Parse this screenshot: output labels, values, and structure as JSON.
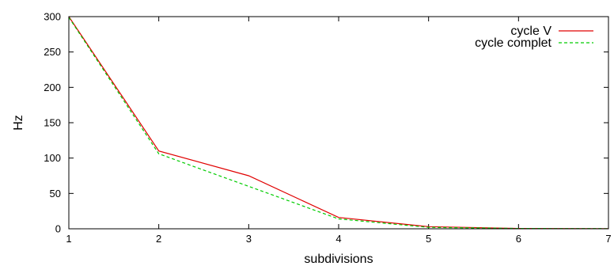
{
  "chart_data": {
    "type": "line",
    "title": "",
    "xlabel": "subdivisions",
    "ylabel": "Hz",
    "xlim": [
      1,
      7
    ],
    "ylim": [
      0,
      300
    ],
    "x_ticks": [
      1,
      2,
      3,
      4,
      5,
      6,
      7
    ],
    "y_ticks": [
      0,
      50,
      100,
      150,
      200,
      250,
      300
    ],
    "grid": false,
    "legend_position": "top-right",
    "x": [
      1,
      2,
      3,
      4,
      5,
      6,
      7
    ],
    "series": [
      {
        "name": "cycle V",
        "color": "#e00000",
        "dash": "solid",
        "values": [
          300,
          110,
          75,
          16,
          3,
          0.5,
          0.2
        ]
      },
      {
        "name": "cycle complet",
        "color": "#00cc00",
        "dash": "dashed",
        "values": [
          299,
          106,
          60,
          14,
          2,
          0.4,
          0.2
        ]
      }
    ]
  }
}
